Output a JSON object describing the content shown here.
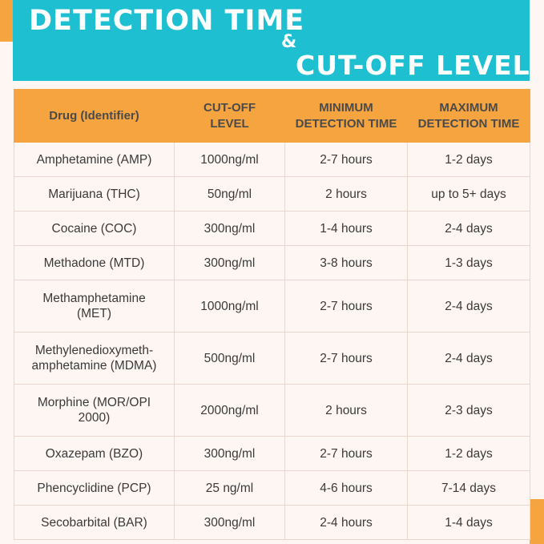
{
  "title": {
    "line1": "DETECTION TIME",
    "amp": "&",
    "line2": "CUT-OFF LEVEL"
  },
  "table": {
    "headers": {
      "drug": "Drug (Identifier)",
      "cutoff": [
        "CUT-OFF",
        "LEVEL"
      ],
      "min": [
        "MINIMUM",
        "DETECTION TIME"
      ],
      "max": [
        "MAXIMUM",
        "DETECTION TIME"
      ]
    },
    "rows": [
      {
        "drug": [
          "Amphetamine (AMP)"
        ],
        "cutoff": "1000ng/ml",
        "min": "2-7 hours",
        "max": "1-2 days"
      },
      {
        "drug": [
          "Marijuana (THC)"
        ],
        "cutoff": "50ng/ml",
        "min": "2 hours",
        "max": "up to 5+ days"
      },
      {
        "drug": [
          "Cocaine (COC)"
        ],
        "cutoff": "300ng/ml",
        "min": "1-4 hours",
        "max": "2-4 days"
      },
      {
        "drug": [
          "Methadone (MTD)"
        ],
        "cutoff": "300ng/ml",
        "min": "3-8 hours",
        "max": "1-3 days"
      },
      {
        "drug": [
          "Methamphetamine",
          "(MET)"
        ],
        "cutoff": "1000ng/ml",
        "min": "2-7 hours",
        "max": "2-4 days"
      },
      {
        "drug": [
          "Methylenedioxymeth-",
          "amphetamine (MDMA)"
        ],
        "cutoff": "500ng/ml",
        "min": "2-7 hours",
        "max": "2-4 days"
      },
      {
        "drug": [
          "Morphine (MOR/OPI",
          "2000)"
        ],
        "cutoff": "2000ng/ml",
        "min": "2 hours",
        "max": "2-3 days"
      },
      {
        "drug": [
          "Oxazepam (BZO)"
        ],
        "cutoff": "300ng/ml",
        "min": "2-7 hours",
        "max": "1-2 days"
      },
      {
        "drug": [
          "Phencyclidine (PCP)"
        ],
        "cutoff": "25 ng/ml",
        "min": "4-6 hours",
        "max": "7-14 days"
      },
      {
        "drug": [
          "Secobarbital (BAR)"
        ],
        "cutoff": "300ng/ml",
        "min": "2-4 hours",
        "max": "1-4 days"
      }
    ]
  }
}
